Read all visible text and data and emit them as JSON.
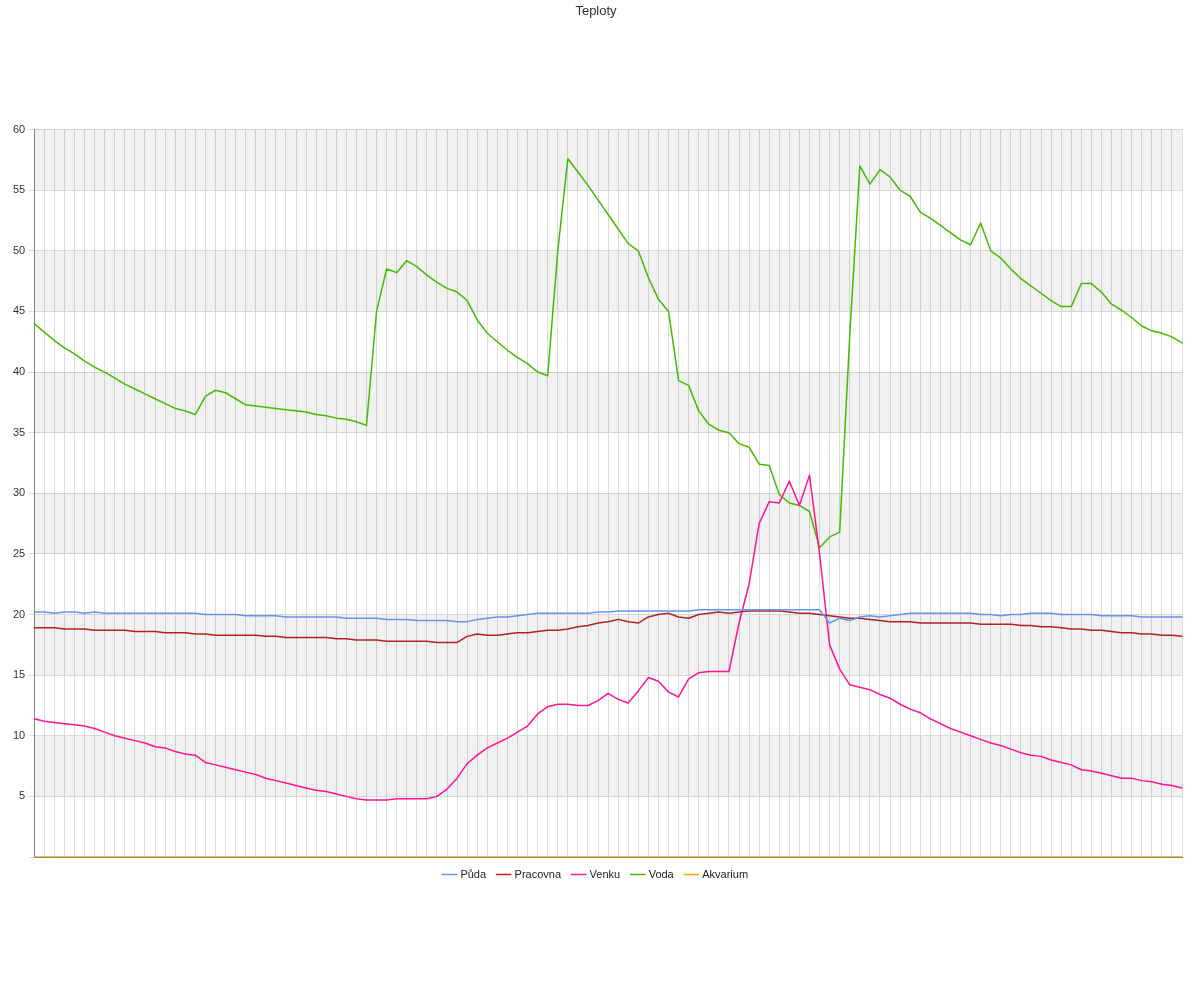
{
  "chart_data": {
    "type": "line",
    "title": "Teploty",
    "categories": [
      null,
      null,
      null,
      null,
      null,
      null,
      null,
      null,
      null,
      null,
      null,
      null,
      null,
      null,
      null,
      null,
      null,
      null,
      null,
      null,
      null,
      null,
      null,
      null,
      null,
      null,
      null,
      null,
      null,
      null,
      null,
      null,
      null,
      null,
      null,
      null,
      null,
      null,
      null,
      null,
      null,
      null,
      null,
      null,
      null,
      null,
      null,
      null,
      null,
      null,
      null,
      null,
      null,
      null,
      null,
      null,
      null,
      null,
      null,
      null,
      null,
      null,
      null,
      null,
      null,
      null,
      null,
      null,
      null,
      null,
      null,
      null,
      null,
      null,
      null,
      null,
      null,
      null,
      null,
      null,
      null,
      null,
      null,
      null,
      null,
      null,
      null,
      null,
      null,
      null,
      null,
      null,
      null,
      null,
      null,
      null,
      null,
      null,
      null,
      null,
      null,
      null,
      null,
      null,
      null,
      null,
      null,
      null,
      null,
      null,
      null,
      null,
      null,
      null,
      null
    ],
    "series": [
      {
        "name": "Půda",
        "color": "#6495ed",
        "values": [
          20.2,
          20.2,
          20.1,
          20.2,
          20.2,
          20.1,
          20.2,
          20.1,
          20.1,
          20.1,
          20.1,
          20.1,
          20.1,
          20.1,
          20.1,
          20.1,
          20.1,
          20.0,
          20.0,
          20.0,
          20.0,
          19.9,
          19.9,
          19.9,
          19.9,
          19.8,
          19.8,
          19.8,
          19.8,
          19.8,
          19.8,
          19.7,
          19.7,
          19.7,
          19.7,
          19.6,
          19.6,
          19.6,
          19.5,
          19.5,
          19.5,
          19.5,
          19.4,
          19.4,
          19.6,
          19.7,
          19.8,
          19.8,
          19.9,
          20.0,
          20.1,
          20.1,
          20.1,
          20.1,
          20.1,
          20.1,
          20.2,
          20.2,
          20.3,
          20.3,
          20.3,
          20.3,
          20.3,
          20.3,
          20.3,
          20.3,
          20.4,
          20.4,
          20.4,
          20.4,
          20.4,
          20.4,
          20.4,
          20.4,
          20.4,
          20.4,
          20.4,
          20.4,
          20.4,
          19.3,
          19.7,
          19.5,
          19.8,
          19.9,
          19.8,
          19.9,
          20.0,
          20.1,
          20.1,
          20.1,
          20.1,
          20.1,
          20.1,
          20.1,
          20.0,
          20.0,
          19.9,
          20.0,
          20.0,
          20.1,
          20.1,
          20.1,
          20.0,
          20.0,
          20.0,
          20.0,
          19.9,
          19.9,
          19.9,
          19.9,
          19.8,
          19.8,
          19.8,
          19.8,
          19.8
        ]
      },
      {
        "name": "Pracovna",
        "color": "#b22222",
        "values": [
          18.9,
          18.9,
          18.9,
          18.8,
          18.8,
          18.8,
          18.7,
          18.7,
          18.7,
          18.7,
          18.6,
          18.6,
          18.6,
          18.5,
          18.5,
          18.5,
          18.4,
          18.4,
          18.3,
          18.3,
          18.3,
          18.3,
          18.3,
          18.2,
          18.2,
          18.1,
          18.1,
          18.1,
          18.1,
          18.1,
          18.0,
          18.0,
          17.9,
          17.9,
          17.9,
          17.8,
          17.8,
          17.8,
          17.8,
          17.8,
          17.7,
          17.7,
          17.7,
          18.2,
          18.4,
          18.3,
          18.3,
          18.4,
          18.5,
          18.5,
          18.6,
          18.7,
          18.7,
          18.8,
          19.0,
          19.1,
          19.3,
          19.4,
          19.6,
          19.4,
          19.3,
          19.8,
          20.0,
          20.1,
          19.8,
          19.7,
          20.0,
          20.1,
          20.2,
          20.1,
          20.2,
          20.3,
          20.3,
          20.3,
          20.3,
          20.2,
          20.1,
          20.1,
          20.0,
          19.9,
          19.8,
          19.7,
          19.7,
          19.6,
          19.5,
          19.4,
          19.4,
          19.4,
          19.3,
          19.3,
          19.3,
          19.3,
          19.3,
          19.3,
          19.2,
          19.2,
          19.2,
          19.2,
          19.1,
          19.1,
          19.0,
          19.0,
          18.9,
          18.8,
          18.8,
          18.7,
          18.7,
          18.6,
          18.5,
          18.5,
          18.4,
          18.4,
          18.3,
          18.3,
          18.2
        ]
      },
      {
        "name": "Venku",
        "color": "#ff1493",
        "values": [
          11.4,
          11.2,
          11.1,
          11.0,
          10.9,
          10.8,
          10.6,
          10.3,
          10.0,
          9.8,
          9.6,
          9.4,
          9.1,
          9.0,
          8.7,
          8.5,
          8.4,
          7.8,
          7.6,
          7.4,
          7.2,
          7.0,
          6.8,
          6.5,
          6.3,
          6.1,
          5.9,
          5.7,
          5.5,
          5.4,
          5.2,
          5.0,
          4.8,
          4.7,
          4.7,
          4.7,
          4.8,
          4.8,
          4.8,
          4.8,
          5.0,
          5.6,
          6.5,
          7.7,
          8.4,
          9.0,
          9.4,
          9.8,
          10.3,
          10.8,
          11.8,
          12.4,
          12.6,
          12.6,
          12.5,
          12.5,
          12.9,
          13.5,
          13.0,
          12.7,
          13.7,
          14.8,
          14.5,
          13.6,
          13.2,
          14.7,
          15.2,
          15.3,
          15.3,
          15.3,
          19.3,
          22.5,
          27.5,
          29.3,
          29.2,
          31.0,
          29.0,
          31.5,
          25.0,
          17.5,
          15.5,
          14.2,
          14.0,
          13.8,
          13.4,
          13.1,
          12.6,
          12.2,
          11.9,
          11.4,
          11.0,
          10.6,
          10.3,
          10.0,
          9.7,
          9.4,
          9.2,
          8.9,
          8.6,
          8.4,
          8.3,
          8.0,
          7.8,
          7.6,
          7.2,
          7.1,
          6.9,
          6.7,
          6.5,
          6.5,
          6.3,
          6.2,
          6.0,
          5.9,
          5.7
        ]
      },
      {
        "name": "Voda",
        "color": "#44bb00",
        "values": [
          44.0,
          43.3,
          42.6,
          42.0,
          41.5,
          40.9,
          40.4,
          40.0,
          39.5,
          39.0,
          38.6,
          38.2,
          37.8,
          37.4,
          37.0,
          36.8,
          36.5,
          38.0,
          38.5,
          38.3,
          37.8,
          37.3,
          37.2,
          37.1,
          37.0,
          36.9,
          36.8,
          36.7,
          36.5,
          36.4,
          36.2,
          36.1,
          35.9,
          35.6,
          45.0,
          48.5,
          48.2,
          49.2,
          48.7,
          48.0,
          47.4,
          46.9,
          46.6,
          45.9,
          44.3,
          43.2,
          42.5,
          41.8,
          41.2,
          40.7,
          40.0,
          39.7,
          50.0,
          57.6,
          56.5,
          55.4,
          54.2,
          53.0,
          51.8,
          50.6,
          50.0,
          47.8,
          46.0,
          45.0,
          39.3,
          38.9,
          36.8,
          35.7,
          35.2,
          35.0,
          34.1,
          33.8,
          32.4,
          32.3,
          29.9,
          29.2,
          29.0,
          28.5,
          25.5,
          26.4,
          26.8,
          43.0,
          57.0,
          55.5,
          56.7,
          56.1,
          55.0,
          54.5,
          53.2,
          52.7,
          52.1,
          51.5,
          50.9,
          50.5,
          52.3,
          50.0,
          49.4,
          48.5,
          47.7,
          47.1,
          46.5,
          45.9,
          45.4,
          45.4,
          47.3,
          47.3,
          46.6,
          45.6,
          45.1,
          44.5,
          43.8,
          43.4,
          43.2,
          42.9,
          42.4
        ]
      },
      {
        "name": "Akvarium",
        "color": "#ffa500",
        "values": [
          0,
          0,
          0,
          0,
          0,
          0,
          0,
          0,
          0,
          0,
          0,
          0,
          0,
          0,
          0,
          0,
          0,
          0,
          0,
          0,
          0,
          0,
          0,
          0,
          0,
          0,
          0,
          0,
          0,
          0,
          0,
          0,
          0,
          0,
          0,
          0,
          0,
          0,
          0,
          0,
          0,
          0,
          0,
          0,
          0,
          0,
          0,
          0,
          0,
          0,
          0,
          0,
          0,
          0,
          0,
          0,
          0,
          0,
          0,
          0,
          0,
          0,
          0,
          0,
          0,
          0,
          0,
          0,
          0,
          0,
          0,
          0,
          0,
          0,
          0,
          0,
          0,
          0,
          0,
          0,
          0,
          0,
          0,
          0,
          0,
          0,
          0,
          0,
          0,
          0,
          0,
          0,
          0,
          0,
          0,
          0,
          0,
          0,
          0,
          0,
          0,
          0,
          0,
          0,
          0,
          0,
          0,
          0,
          0,
          0,
          0,
          0,
          0,
          0,
          0
        ]
      }
    ],
    "ylim": [
      0,
      60
    ],
    "yticks": [
      {
        "value": 0,
        "label": null
      },
      5,
      10,
      15,
      20,
      25,
      30,
      35,
      40,
      45,
      50,
      55,
      60
    ],
    "grid": true,
    "legend": "bottom",
    "tick_labels": "y",
    "marker": "none",
    "line_style": "solid"
  }
}
